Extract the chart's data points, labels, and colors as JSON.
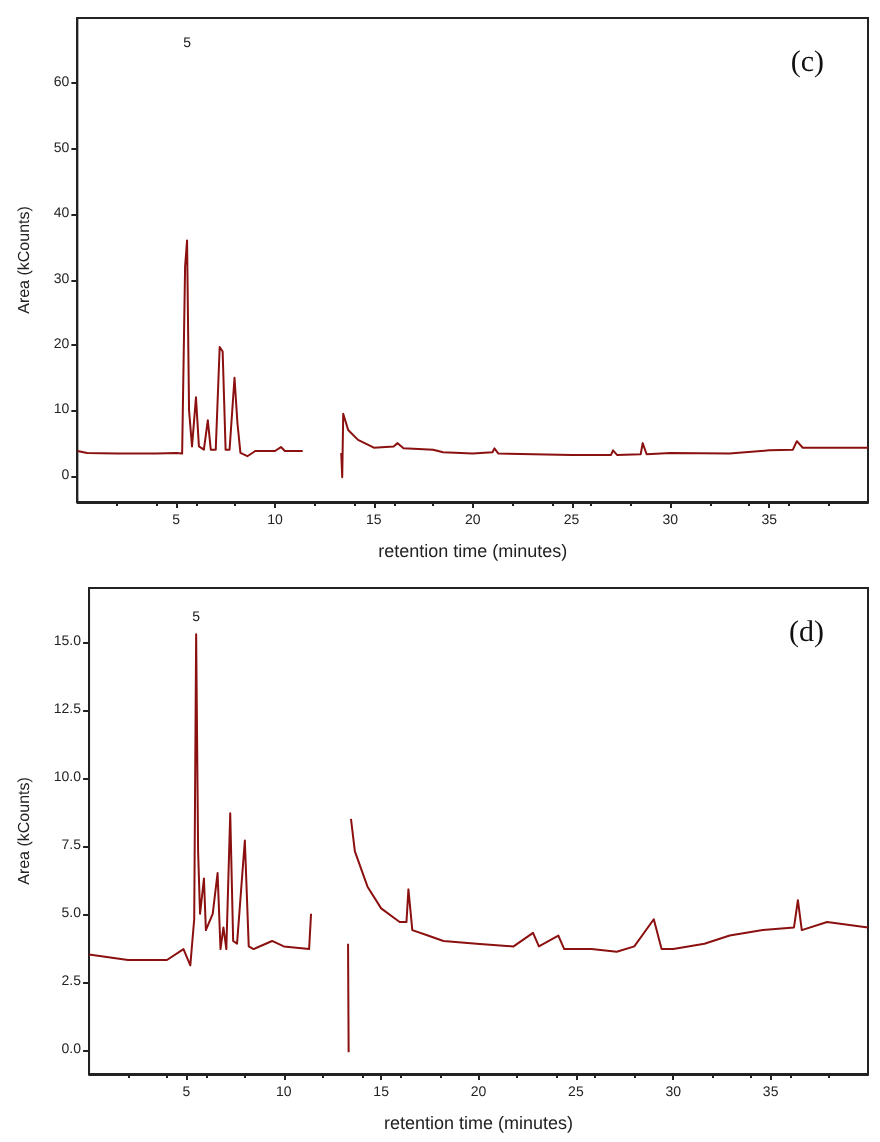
{
  "chart_data": [
    {
      "type": "line",
      "xlabel": "retention time (minutes)",
      "ylabel": "Area (kCounts)",
      "annotations": [
        "(c)",
        "5"
      ],
      "xlim": [
        0,
        40
      ],
      "xticks": [
        5,
        10,
        15,
        20,
        25,
        30,
        35
      ],
      "ylim": [
        -4,
        70
      ],
      "yticks": [
        0,
        10,
        20,
        30,
        40,
        50,
        60
      ],
      "marker": "none",
      "line_style": "solid",
      "series": [
        {
          "color": "#8b1010",
          "x": [
            0,
            0.5,
            2,
            4,
            5,
            5.3,
            5.45,
            5.55,
            5.65,
            5.8,
            6.0,
            6.15,
            6.4,
            6.6,
            6.75,
            7.0,
            7.2,
            7.35,
            7.5,
            7.7,
            7.95,
            8.1,
            8.25,
            8.6,
            9,
            10,
            10.3,
            10.5,
            11.4,
            12.4,
            13.35,
            13.4,
            13.45,
            13.7,
            14.2,
            15,
            16,
            16.2,
            16.5,
            18,
            18.5,
            20,
            21,
            21.1,
            21.3,
            25,
            27,
            27.1,
            27.3,
            28.5,
            28.6,
            28.8,
            30,
            33,
            35,
            36.2,
            36.4,
            36.7,
            40
          ],
          "values": [
            3.8,
            3.5,
            3.4,
            3.4,
            3.5,
            3.4,
            32,
            36,
            10,
            4.5,
            12,
            4.5,
            4,
            8.5,
            4,
            4,
            19.7,
            19,
            4,
            4,
            15,
            8,
            3.5,
            3,
            3.8,
            3.8,
            4.4,
            3.8,
            3.8,
            null,
            3.5,
            -0.2,
            9.5,
            7,
            5.5,
            4.3,
            4.5,
            5,
            4.2,
            4,
            3.6,
            3.4,
            3.6,
            4.2,
            3.4,
            3.2,
            3.2,
            3.9,
            3.2,
            3.3,
            5.0,
            3.3,
            3.5,
            3.4,
            3.9,
            4,
            5.3,
            4.3,
            4.3
          ]
        }
      ]
    },
    {
      "type": "line",
      "xlabel": "retention time (minutes)",
      "ylabel": "Area (kCounts)",
      "annotations": [
        "(d)",
        "5"
      ],
      "xlim": [
        0,
        40
      ],
      "xticks": [
        5,
        10,
        15,
        20,
        25,
        30,
        35
      ],
      "ylim": [
        -0.9,
        17
      ],
      "yticks": [
        {
          "value": 0,
          "label": "0.0"
        },
        {
          "value": 2.5,
          "label": "2.5"
        },
        {
          "value": 5,
          "label": "5.0"
        },
        {
          "value": 7.5,
          "label": "7.5"
        },
        {
          "value": 10,
          "label": "10.0"
        },
        {
          "value": 12.5,
          "label": "12.5"
        },
        {
          "value": 15,
          "label": "15.0"
        }
      ],
      "marker": "none",
      "line_style": "solid",
      "series": [
        {
          "color": "#8b1010",
          "x": [
            0,
            1,
            2,
            3,
            4,
            4.85,
            5.2,
            5.4,
            5.5,
            5.6,
            5.7,
            5.9,
            6.0,
            6.35,
            6.6,
            6.75,
            6.9,
            7.05,
            7.25,
            7.4,
            7.6,
            8.0,
            8.2,
            8.45,
            9.4,
            10,
            11.3,
            11.4,
            12.4,
            13.3,
            13.33,
            13.38,
            13.45,
            13.65,
            14.3,
            15,
            15.95,
            16.3,
            16.4,
            16.6,
            17.4,
            18.2,
            19.9,
            21.8,
            22.8,
            23.1,
            24.1,
            24.4,
            25.8,
            27.1,
            28,
            29,
            29.4,
            30,
            31.6,
            32.9,
            34.6,
            36.2,
            36.4,
            36.6,
            37.9,
            40
          ],
          "values": [
            3.5,
            3.4,
            3.3,
            3.3,
            3.3,
            3.7,
            3.1,
            4.8,
            15.3,
            7.3,
            5.0,
            6.3,
            4.4,
            5.0,
            6.5,
            3.7,
            4.5,
            3.7,
            8.7,
            4.0,
            3.9,
            7.7,
            3.8,
            3.7,
            4.0,
            3.8,
            3.7,
            5.0,
            null,
            3.9,
            -0.1,
            null,
            8.5,
            7.3,
            6.0,
            5.2,
            4.7,
            4.7,
            5.9,
            4.4,
            4.2,
            4.0,
            3.9,
            3.8,
            4.3,
            3.8,
            4.2,
            3.7,
            3.7,
            3.6,
            3.8,
            4.8,
            3.7,
            3.7,
            3.9,
            4.2,
            4.4,
            4.5,
            5.5,
            4.4,
            4.7,
            4.5
          ]
        }
      ]
    }
  ]
}
